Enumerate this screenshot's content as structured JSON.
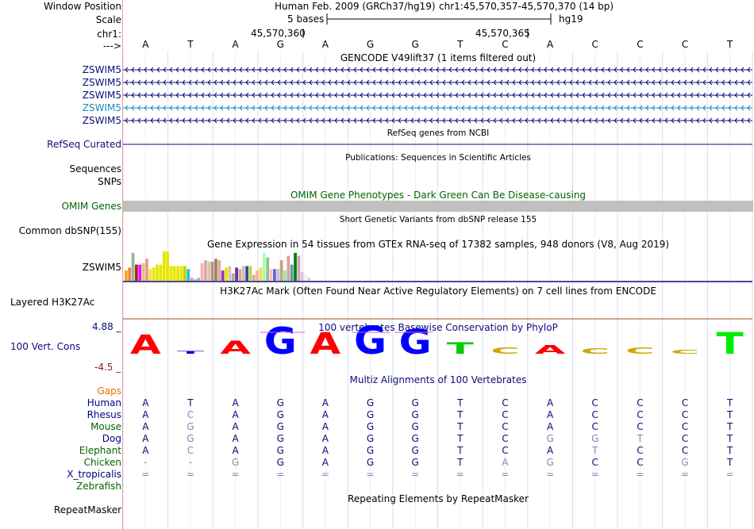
{
  "header": {
    "window_position_label": "Window Position",
    "assembly_title": "Human Feb. 2009 (GRCh37/hg19)",
    "position_text": "chr1:45,570,357-45,570,370 (14 bp)",
    "scale_label": "Scale",
    "scale_text": "5 bases",
    "scale_db": "hg19",
    "chrom_label": "chr1:",
    "coord1": "45,570,360",
    "coord2": "45,570,365",
    "strand_label": "--->"
  },
  "bases": [
    "A",
    "T",
    "A",
    "G",
    "A",
    "G",
    "G",
    "T",
    "C",
    "A",
    "C",
    "C",
    "C",
    "T"
  ],
  "gencode": {
    "title": "GENCODE V49lift37 (1 items filtered out)",
    "genes": [
      {
        "label": "ZSWIM5",
        "color": "#0c0c78"
      },
      {
        "label": "ZSWIM5",
        "color": "#0c0c78"
      },
      {
        "label": "ZSWIM5",
        "color": "#0c0c78"
      },
      {
        "label": "ZSWIM5",
        "color": "#1b8bb5"
      },
      {
        "label": "ZSWIM5",
        "color": "#0c0c78"
      }
    ]
  },
  "refseq": {
    "title": "RefSeq genes from NCBI",
    "label": "RefSeq Curated"
  },
  "pubs": {
    "title": "Publications: Sequences in Scientific Articles",
    "label_seq": "Sequences",
    "label_snp": "SNPs"
  },
  "omim": {
    "title": "OMIM Gene Phenotypes - Dark Green Can Be Disease-causing",
    "label": "OMIM Genes",
    "color": "#006400"
  },
  "dbsnp": {
    "title": "Short Genetic Variants from dbSNP release 155",
    "label": "Common dbSNP(155)"
  },
  "gtex": {
    "title": "Gene Expression in 54 tissues from GTEx RNA-seq of 17382 samples, 948 donors (V8, Aug 2019)",
    "label": "ZSWIM5",
    "values": [
      0.35,
      0.45,
      0.95,
      0.55,
      0.55,
      0.6,
      0.75,
      0.4,
      0.45,
      0.55,
      0.55,
      1.0,
      1.0,
      0.5,
      0.5,
      0.5,
      0.5,
      0.5,
      0.4,
      0.1,
      0.05,
      0.1,
      0.6,
      0.7,
      0.65,
      0.65,
      0.75,
      0.7,
      0.35,
      0.45,
      0.5,
      0.25,
      0.45,
      0.4,
      0.5,
      0.5,
      0.5,
      0.2,
      0.35,
      0.45,
      0.95,
      0.8,
      0.4,
      0.4,
      0.4,
      0.7,
      0.35,
      0.85,
      0.55,
      0.95,
      0.85,
      0.3,
      0.2,
      0.1
    ],
    "colors": [
      "#f5a51e",
      "#f57f3c",
      "#8fbc8f",
      "#aa1e2b",
      "#ff00ff",
      "#cccc80",
      "#ee9a80",
      "#ffd84d",
      "#e6e600",
      "#e6e600",
      "#e6e600",
      "#e6e600",
      "#e6e600",
      "#e6e600",
      "#e6e600",
      "#e6e600",
      "#e6e600",
      "#cccc00",
      "#1ec8d8",
      "#c8a0a0",
      "#aaaacc",
      "#8fbc8f",
      "#ffaabb",
      "#d0b0a0",
      "#e0c0b0",
      "#b09080",
      "#a08070",
      "#d8b090",
      "#9932cc",
      "#e6e600",
      "#e0c0b0",
      "#aaa",
      "#7030a0",
      "#c8b090",
      "#ddbb99",
      "#2255aa",
      "#cccc44",
      "#d2b48c",
      "#e6b4b4",
      "#ffd84d",
      "#aaffaa",
      "#90c090",
      "#ffc0c0",
      "#6666cc",
      "#c0c0e0",
      "#c8a080",
      "#90ee90",
      "#d8a0a0",
      "#5f9ea0",
      "#008000",
      "#d0a0c0",
      "#e0c0e0",
      "#f0f0f0",
      "#d0d0d0"
    ]
  },
  "h3k27ac": {
    "title": "H3K27Ac Mark (Often Found Near Active Regulatory Elements) on 7 cell lines from ENCODE",
    "label": "Layered H3K27Ac"
  },
  "cons": {
    "title": "100 vertebrates Basewise Conservation by PhyloP",
    "label": "100 Vert. Cons",
    "ymax": "4.88 _",
    "ymin": "-4.5 _",
    "scores": [
      2.3,
      0.1,
      1.5,
      3.3,
      2.6,
      3.4,
      3.0,
      1.3,
      -0.6,
      -0.9,
      -0.5,
      -0.6,
      -0.3,
      2.6
    ],
    "colors": [
      "#ff0000",
      "#0000cc",
      "#ff0000",
      "#0000ff",
      "#ff0000",
      "#0000ff",
      "#0000ff",
      "#00cc00",
      "#ccaa00",
      "#ff0000",
      "#ccaa00",
      "#ccaa00",
      "#ccaa00",
      "#00ee00"
    ]
  },
  "multiz": {
    "title": "Multiz Alignments of 100 Vertebrates",
    "gaps_label": "Gaps",
    "species": [
      {
        "name": "Human",
        "color": "#000080",
        "seq": [
          "A",
          "T",
          "A",
          "G",
          "A",
          "G",
          "G",
          "T",
          "C",
          "A",
          "C",
          "C",
          "C",
          "T"
        ]
      },
      {
        "name": "Rhesus",
        "color": "#000080",
        "seq": [
          "A",
          "C",
          "A",
          "G",
          "A",
          "G",
          "G",
          "T",
          "C",
          "A",
          "C",
          "C",
          "C",
          "T"
        ]
      },
      {
        "name": "Mouse",
        "color": "#006400",
        "seq": [
          "A",
          "G",
          "A",
          "G",
          "A",
          "G",
          "G",
          "T",
          "C",
          "A",
          "C",
          "C",
          "C",
          "T"
        ]
      },
      {
        "name": "Dog",
        "color": "#000080",
        "seq": [
          "A",
          "G",
          "A",
          "G",
          "A",
          "G",
          "G",
          "T",
          "C",
          "G",
          "G",
          "T",
          "C",
          "T"
        ]
      },
      {
        "name": "Elephant",
        "color": "#006400",
        "seq": [
          "A",
          "C",
          "A",
          "G",
          "A",
          "G",
          "G",
          "T",
          "C",
          "A",
          "T",
          "C",
          "C",
          "T"
        ]
      },
      {
        "name": "Chicken",
        "color": "#006400",
        "seq": [
          "-",
          "-",
          "G",
          "G",
          "A",
          "G",
          "G",
          "T",
          "A",
          "G",
          "C",
          "C",
          "G",
          "T"
        ]
      },
      {
        "name": "X_tropicalis",
        "color": "#000080",
        "seq": [
          "=",
          "=",
          "=",
          "=",
          "=",
          "=",
          "=",
          "=",
          "=",
          "=",
          "=",
          "=",
          "=",
          "="
        ]
      },
      {
        "name": "Zebrafish",
        "color": "#006400",
        "seq": []
      }
    ],
    "diff": [
      [
        0,
        0,
        0,
        0,
        0,
        0,
        0,
        0,
        0,
        0,
        0,
        0,
        0,
        0
      ],
      [
        0,
        1,
        0,
        0,
        0,
        0,
        0,
        0,
        0,
        0,
        0,
        0,
        0,
        0
      ],
      [
        0,
        1,
        0,
        0,
        0,
        0,
        0,
        0,
        0,
        0,
        0,
        0,
        0,
        0
      ],
      [
        0,
        1,
        0,
        0,
        0,
        0,
        0,
        0,
        0,
        1,
        1,
        1,
        0,
        0
      ],
      [
        0,
        1,
        0,
        0,
        0,
        0,
        0,
        0,
        0,
        0,
        1,
        0,
        0,
        0
      ],
      [
        1,
        1,
        1,
        0,
        0,
        0,
        0,
        0,
        1,
        1,
        0,
        0,
        1,
        0
      ],
      [
        1,
        1,
        1,
        1,
        1,
        1,
        1,
        1,
        1,
        1,
        1,
        1,
        1,
        1
      ]
    ]
  },
  "repeat": {
    "title": "Repeating Elements by RepeatMasker",
    "label": "RepeatMasker"
  }
}
